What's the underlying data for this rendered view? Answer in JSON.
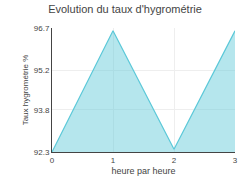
{
  "chart_data": {
    "type": "area",
    "title": "Evolution du taux d'hygrométrie",
    "xlabel": "heure par heure",
    "ylabel": "Taux hygrométrie %",
    "x": [
      0,
      1,
      2,
      3
    ],
    "values": [
      92.3,
      96.6,
      92.4,
      96.6
    ],
    "color": "#5bc8d8",
    "xlim": [
      0,
      3
    ],
    "ylim": [
      92.3,
      96.7
    ],
    "xticks": [
      0,
      1,
      2,
      3
    ],
    "yticks": [
      92.3,
      93.8,
      95.2,
      96.7
    ],
    "grid": true
  }
}
